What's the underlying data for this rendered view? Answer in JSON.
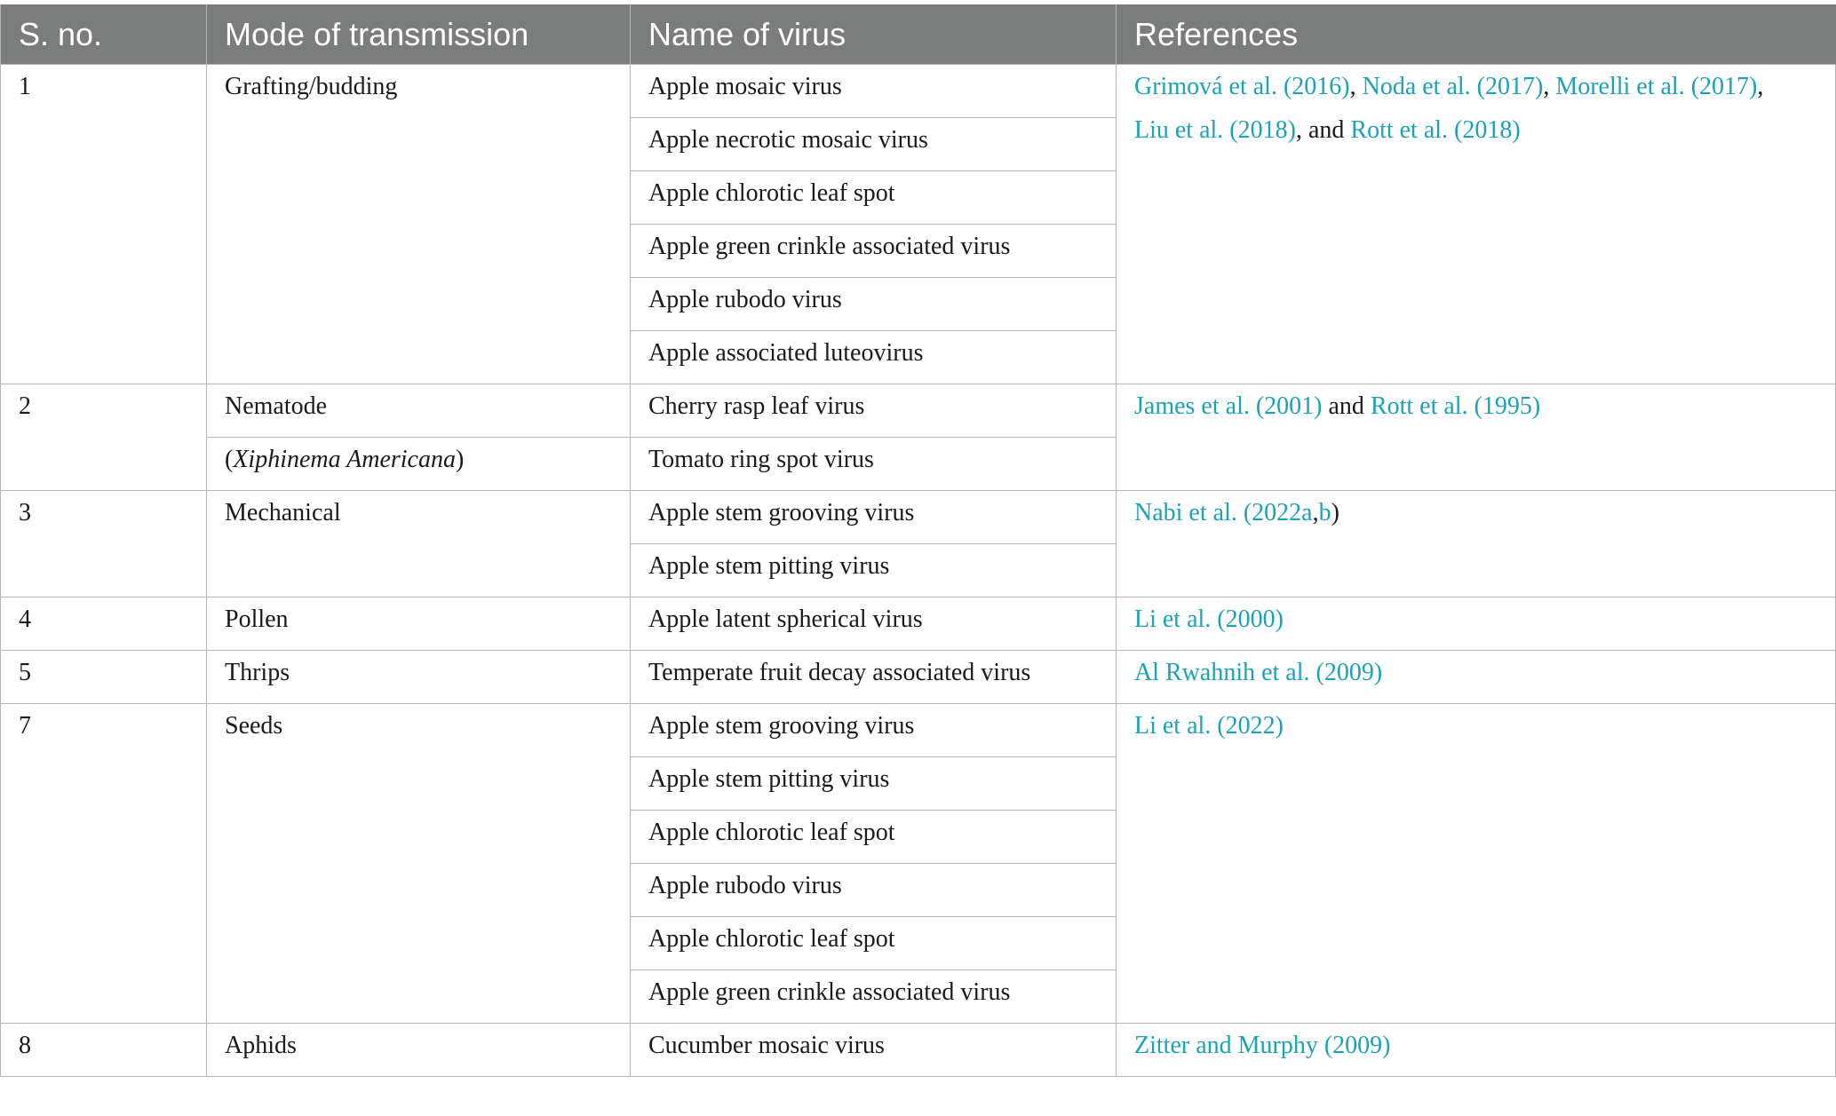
{
  "headers": [
    "S. no.",
    "Mode of transmission",
    "Name of virus",
    "References"
  ],
  "groups": [
    {
      "sno": "1",
      "mode": "Grafting/budding",
      "viruses": [
        "Apple mosaic virus",
        "Apple necrotic mosaic virus",
        "Apple chlorotic leaf spot",
        "Apple green crinkle associated virus",
        "Apple rubodo virus",
        "Apple associated luteovirus"
      ],
      "refs": {
        "r1": "Grimová et al. (2016)",
        "s1": ", ",
        "r2": "Noda et al. (2017)",
        "s2": ", ",
        "r3": "Morelli et al. (2017)",
        "s3": ",",
        "r4": "Liu et al. (2018)",
        "s4": ", and ",
        "r5": "Rott et al. (2018)"
      }
    },
    {
      "sno": "2",
      "mode": "Nematode",
      "mode2_open": "(",
      "mode2_italic": "Xiphinema Americana",
      "mode2_close": ")",
      "viruses": [
        "Cherry rasp leaf virus",
        "Tomato ring spot virus"
      ],
      "refs": {
        "r1": "James et al. (2001)",
        "s1": " and ",
        "r2": "Rott et al. (1995)"
      }
    },
    {
      "sno": "3",
      "mode": "Mechanical",
      "viruses": [
        "Apple stem grooving virus",
        "Apple stem pitting virus"
      ],
      "refs": {
        "r1": "Nabi et al. (2022a",
        "s1": ",",
        "r2": "b",
        "s2": ")"
      }
    },
    {
      "sno": "4",
      "mode": "Pollen",
      "viruses": [
        "Apple latent spherical virus"
      ],
      "refs": {
        "r1": "Li et al. (2000)"
      }
    },
    {
      "sno": "5",
      "mode": "Thrips",
      "viruses": [
        "Temperate fruit decay associated virus"
      ],
      "refs": {
        "r1": "Al Rwahnih et al. (2009)"
      }
    },
    {
      "sno": "7",
      "mode": "Seeds",
      "viruses": [
        "Apple stem grooving virus",
        "Apple stem pitting virus",
        "Apple chlorotic leaf spot",
        "Apple rubodo virus",
        "Apple chlorotic leaf spot",
        "Apple green crinkle associated virus"
      ],
      "refs": {
        "r1": "Li et al. (2022)"
      }
    },
    {
      "sno": "8",
      "mode": "Aphids",
      "viruses": [
        "Cucumber mosaic virus"
      ],
      "refs": {
        "r1": "Zitter and Murphy (2009)"
      }
    }
  ],
  "colors": {
    "header_bg": "#7b7d7c",
    "link": "#1aa3b8",
    "border": "#b5b5b5"
  }
}
